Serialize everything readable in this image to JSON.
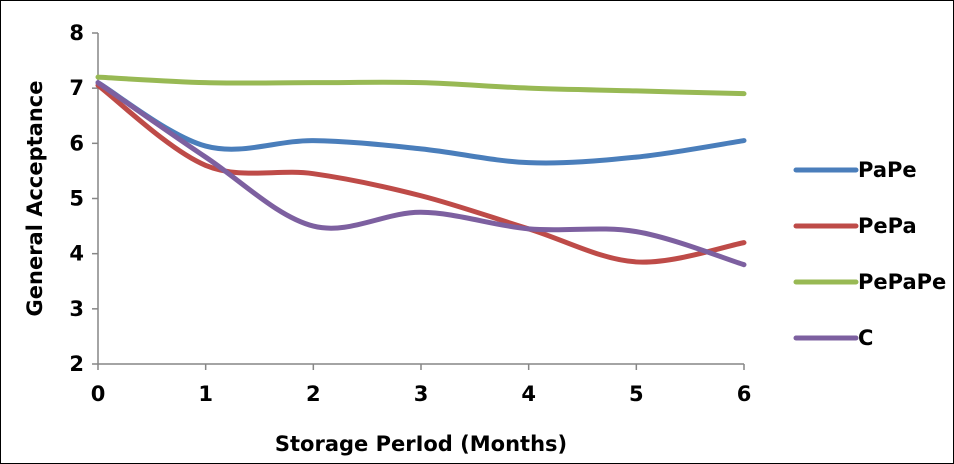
{
  "chart_data": {
    "type": "line",
    "title": "",
    "xlabel": "Storage PerIod (Months)",
    "ylabel": "General Acceptance",
    "x": [
      0,
      1,
      2,
      3,
      4,
      5,
      6
    ],
    "xlim": [
      0,
      6
    ],
    "ylim": [
      2,
      8
    ],
    "y_ticks": [
      2,
      3,
      4,
      5,
      6,
      7,
      8
    ],
    "x_ticks": [
      0,
      1,
      2,
      3,
      4,
      5,
      6
    ],
    "grid": false,
    "legend_position": "right",
    "smoothed": true,
    "series": [
      {
        "name": "PaPe",
        "color": "#4a7ebb",
        "values": [
          7.1,
          5.95,
          6.05,
          5.9,
          5.65,
          5.75,
          6.05
        ]
      },
      {
        "name": "PePa",
        "color": "#be4b48",
        "values": [
          7.05,
          5.6,
          5.45,
          5.05,
          4.45,
          3.85,
          4.2
        ]
      },
      {
        "name": "PePaPe",
        "color": "#98b954",
        "values": [
          7.2,
          7.1,
          7.1,
          7.1,
          7.0,
          6.95,
          6.9
        ]
      },
      {
        "name": "C",
        "color": "#7d60a0",
        "values": [
          7.1,
          5.75,
          4.5,
          4.75,
          4.45,
          4.4,
          3.8
        ]
      }
    ]
  }
}
